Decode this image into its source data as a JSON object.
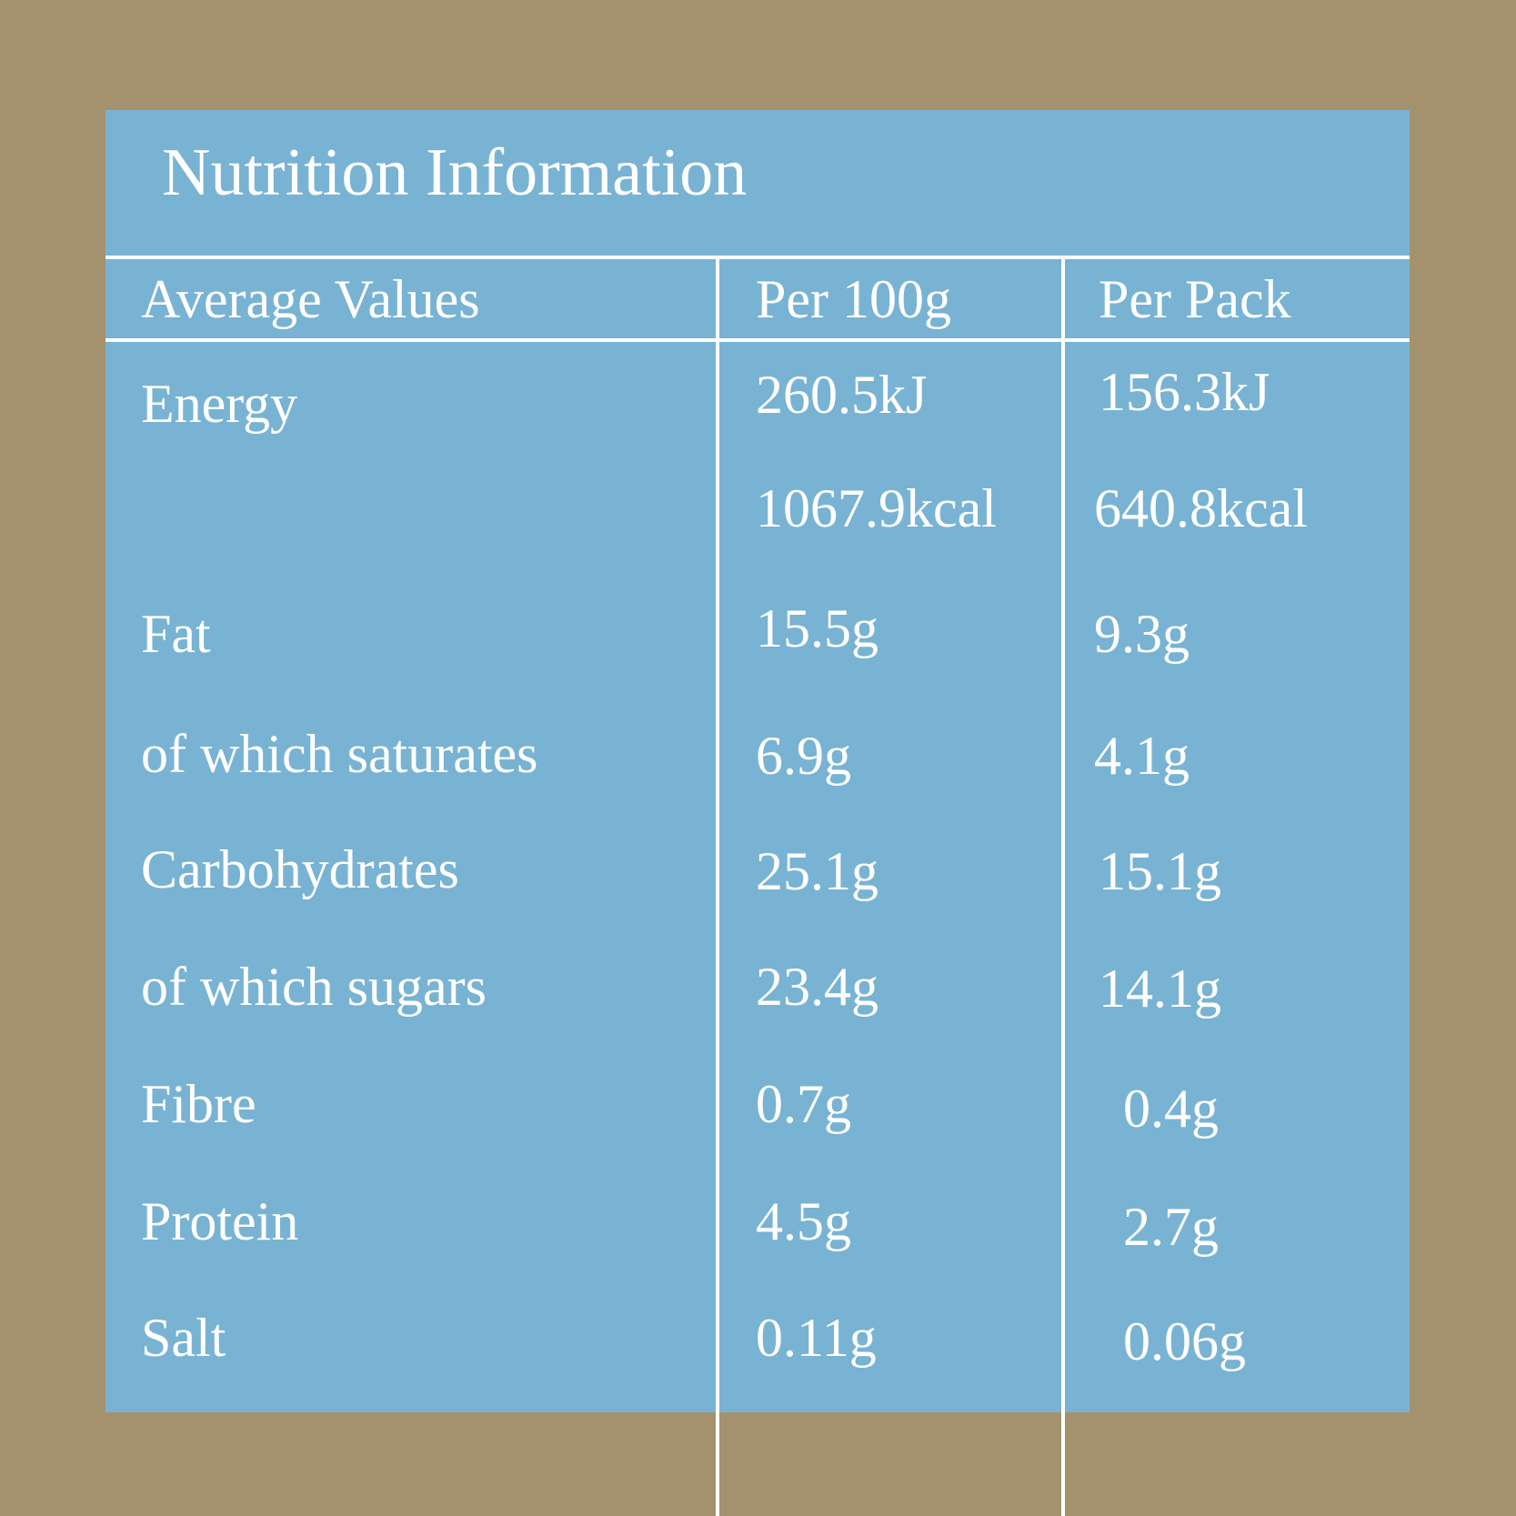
{
  "panel": {
    "title": "Nutrition Information"
  },
  "table": {
    "headers": {
      "name": "Average Values",
      "per100": "Per 100g",
      "perPack": "Per Pack"
    },
    "rows": [
      {
        "name": "Energy",
        "per100": "260.5kJ",
        "perPack": "156.3kJ"
      },
      {
        "name": "",
        "per100": "1067.9kcal",
        "perPack": "640.8kcal"
      },
      {
        "name": "Fat",
        "per100": "15.5g",
        "perPack": "9.3g"
      },
      {
        "name": "of which saturates",
        "per100": "6.9g",
        "perPack": "4.1g"
      },
      {
        "name": "Carbohydrates",
        "per100": "25.1g",
        "perPack": "15.1g"
      },
      {
        "name": "of which sugars",
        "per100": "23.4g",
        "perPack": "14.1g"
      },
      {
        "name": "Fibre",
        "per100": "0.7g",
        "perPack": "0.4g"
      },
      {
        "name": "Protein",
        "per100": "4.5g",
        "perPack": "2.7g"
      },
      {
        "name": "Salt",
        "per100": "0.11g",
        "perPack": "0.06g"
      }
    ]
  },
  "colors": {
    "background": "#a4926e",
    "panel": "#79b3d4",
    "text": "#ffffff"
  }
}
